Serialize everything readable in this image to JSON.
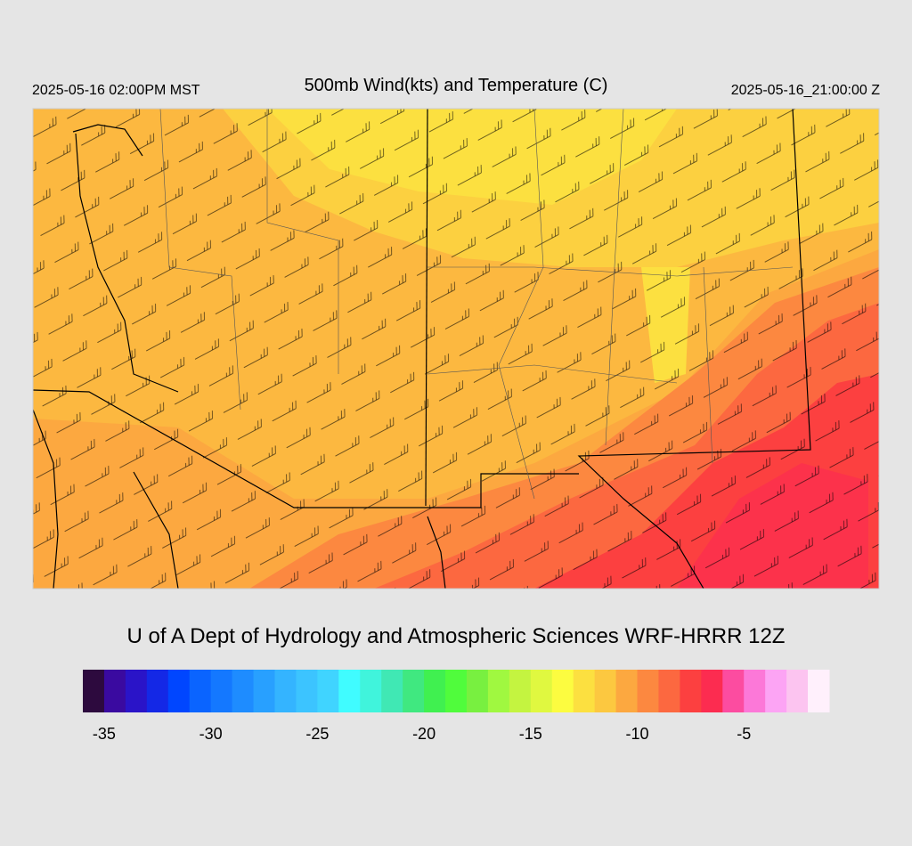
{
  "header": {
    "valid_local": "2025-05-16 02:00PM MST",
    "title": "500mb Wind(kts) and Temperature (C)",
    "valid_utc": "2025-05-16_21:00:00 Z"
  },
  "footer": {
    "credit": "U of A Dept of Hydrology and Atmospheric Sciences WRF-HRRR 12Z"
  },
  "colorbar": {
    "range": [
      -36,
      -1
    ],
    "ticks": [
      -35,
      -30,
      -25,
      -20,
      -15,
      -10,
      -5
    ],
    "colors": [
      "#2d0a3e",
      "#3a0aa0",
      "#2a14c8",
      "#1428e6",
      "#0046ff",
      "#0a64ff",
      "#1478ff",
      "#1e8cff",
      "#28a0ff",
      "#34b4ff",
      "#3cc4ff",
      "#40d4ff",
      "#40fcff",
      "#40f4dc",
      "#40e8b4",
      "#40e880",
      "#40f050",
      "#50fc3c",
      "#78f040",
      "#a0f840",
      "#c4f440",
      "#e0f840",
      "#fcfc40",
      "#fce040",
      "#fcc840",
      "#fca840",
      "#fc8840",
      "#fc6840",
      "#fc4040",
      "#fc2c50",
      "#fc4ca0",
      "#fc78d8",
      "#fca4f4",
      "#fcc4f0",
      "#fff0fc"
    ]
  }
}
